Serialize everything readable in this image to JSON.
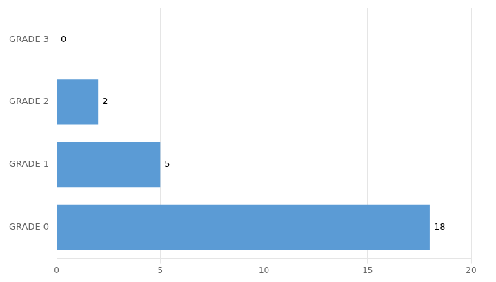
{
  "chart_data": {
    "type": "bar",
    "orientation": "horizontal",
    "categories": [
      "GRADE 0",
      "GRADE 1",
      "GRADE 2",
      "GRADE 3"
    ],
    "values": [
      18,
      5,
      2,
      0
    ],
    "color": "#5B9BD5",
    "xlim": [
      0,
      20
    ],
    "xticks": [
      0,
      5,
      10,
      15,
      20
    ],
    "grid": true,
    "data_labels": true
  }
}
